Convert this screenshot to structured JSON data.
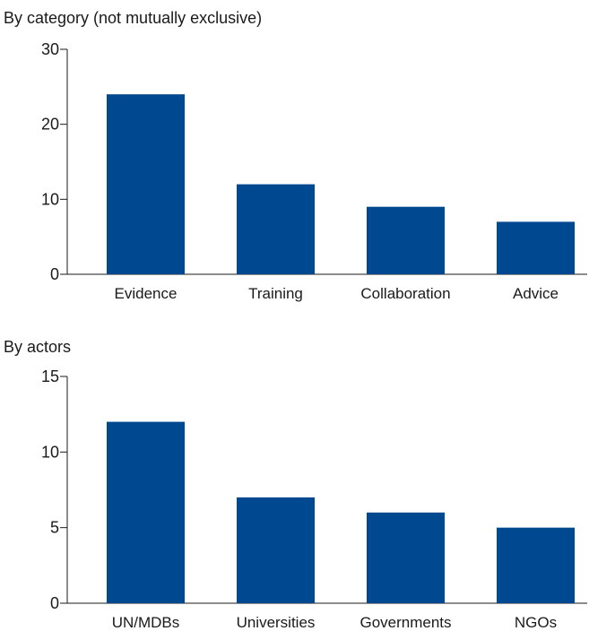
{
  "chart_data": [
    {
      "type": "bar",
      "title": "By category (not mutually exclusive)",
      "categories": [
        "Evidence",
        "Training",
        "Collaboration",
        "Advice"
      ],
      "values": [
        24,
        12,
        9,
        7
      ],
      "ylim": [
        0,
        30
      ],
      "yticks": [
        0,
        10,
        20,
        30
      ],
      "xlabel": "",
      "ylabel": "",
      "grid": false,
      "legend": "none",
      "bar_color": "#004990"
    },
    {
      "type": "bar",
      "title": "By actors",
      "categories": [
        "UN/MDBs",
        "Universities",
        "Governments",
        "NGOs"
      ],
      "values": [
        12,
        7,
        6,
        5
      ],
      "ylim": [
        0,
        15
      ],
      "yticks": [
        0,
        5,
        10,
        15
      ],
      "xlabel": "",
      "ylabel": "",
      "grid": false,
      "legend": "none",
      "bar_color": "#004990"
    }
  ]
}
